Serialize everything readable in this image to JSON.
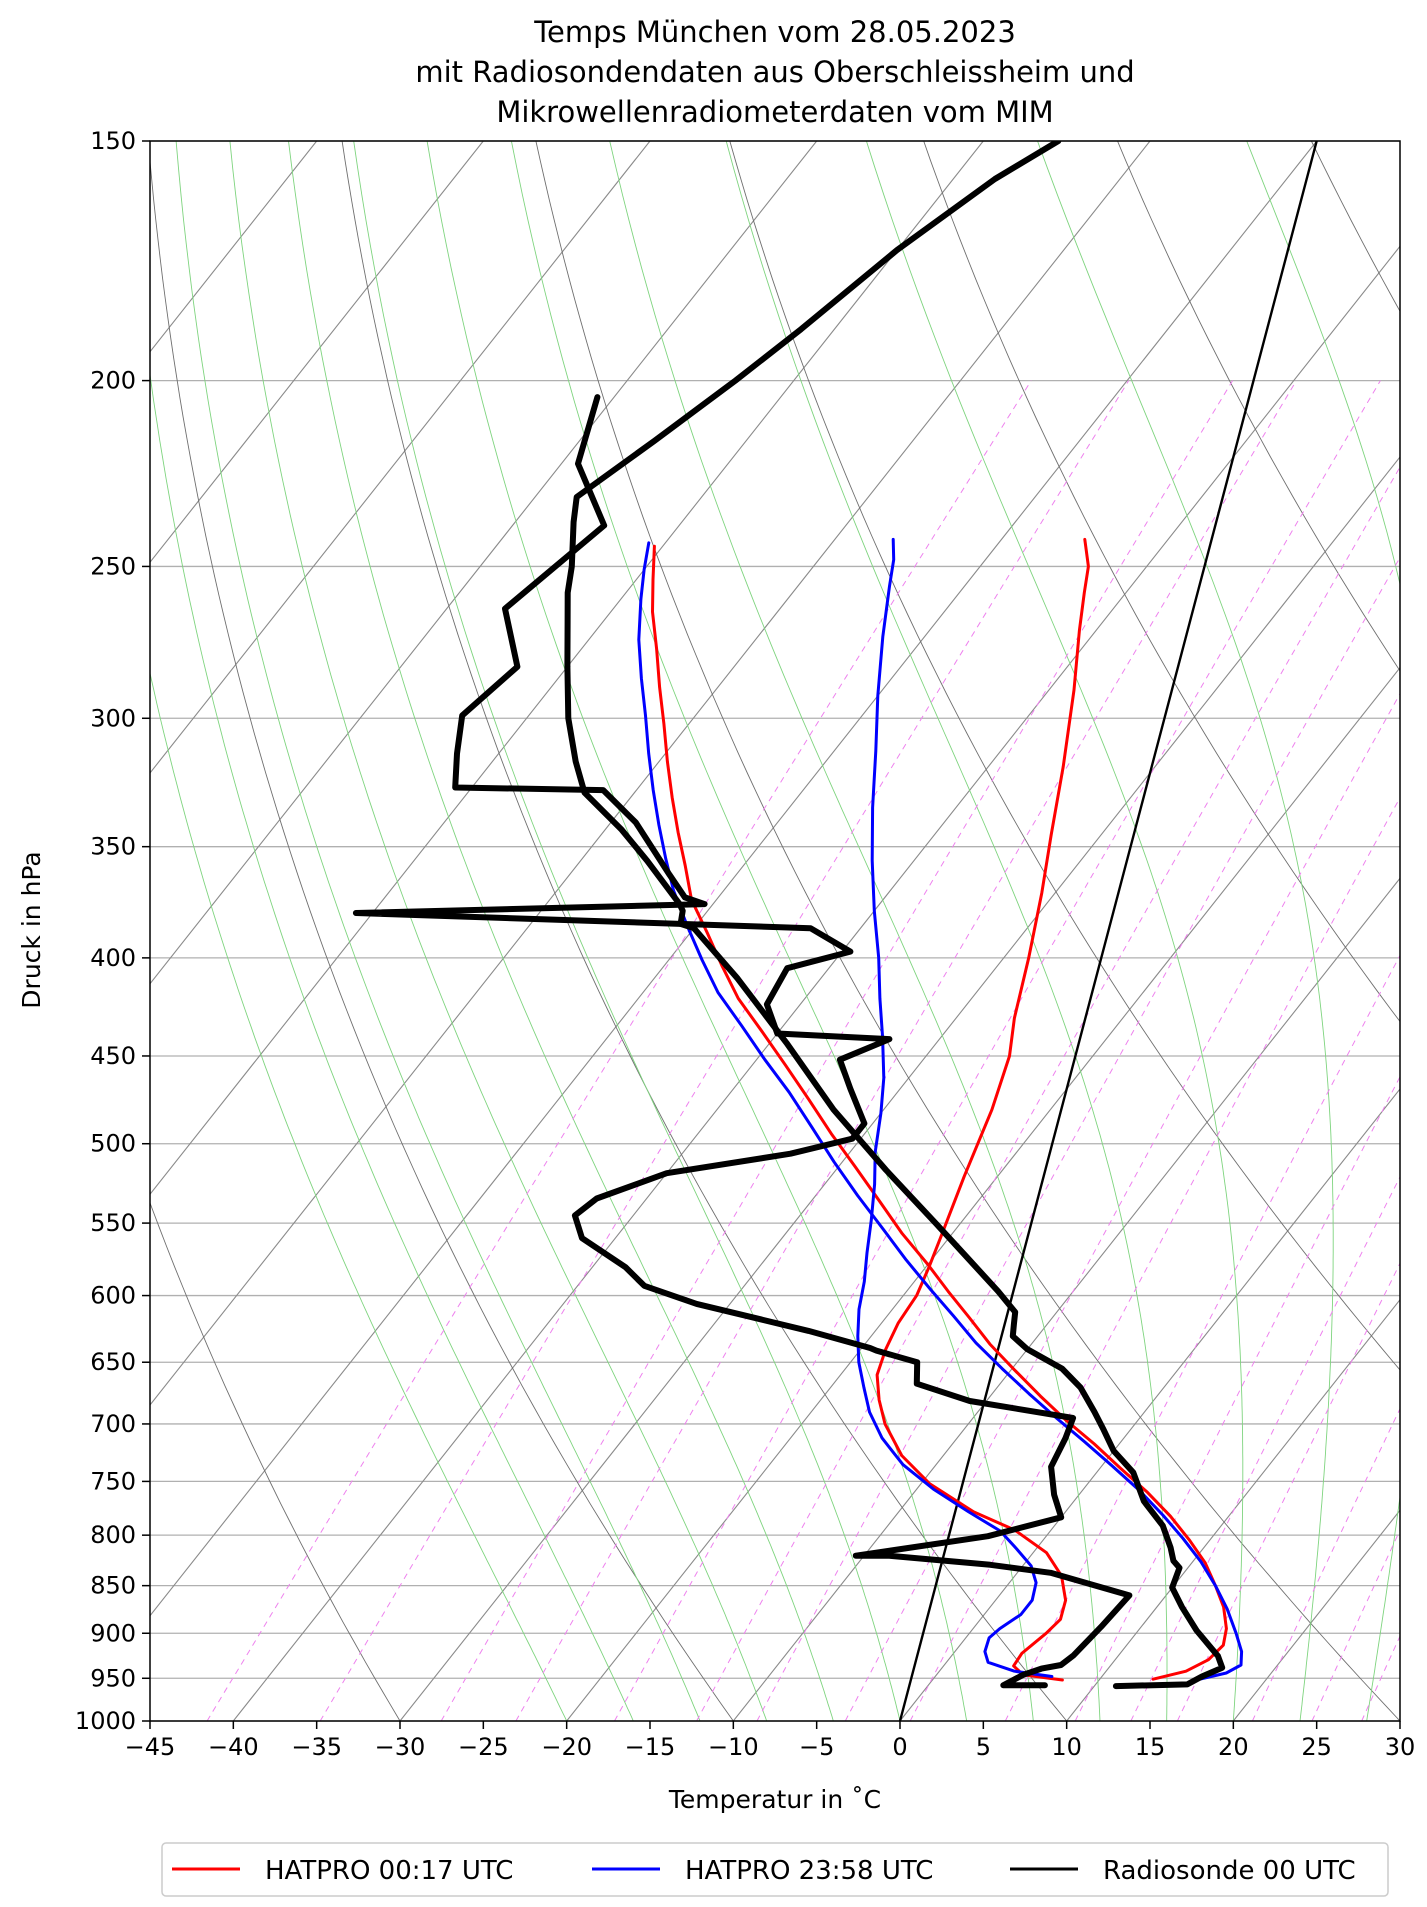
{
  "chart_data": {
    "type": "line",
    "subtype": "skew-T log-p diagram",
    "title": [
      "Temps München vom 28.05.2023",
      "mit Radiosondendaten aus Oberschleissheim und",
      "Mikrowellenradiometerdaten vom MIM"
    ],
    "xlabel": "Temperatur in $^\\circ$C",
    "xlabel_display": "Temperatur in ˚C",
    "ylabel": "Druck in hPa",
    "xlim": [
      -45,
      30
    ],
    "ylim": [
      1000,
      150
    ],
    "yscale": "log",
    "x_ticks": [
      -45,
      -40,
      -35,
      -30,
      -25,
      -20,
      -15,
      -10,
      -5,
      0,
      5,
      10,
      15,
      20,
      25,
      30
    ],
    "y_ticks": [
      150,
      200,
      250,
      300,
      350,
      400,
      450,
      500,
      550,
      600,
      650,
      700,
      750,
      800,
      850,
      900,
      950,
      1000
    ],
    "grid": true,
    "legend_position": "bottom-center",
    "colors": {
      "hatpro_0017": "#ff0000",
      "hatpro_2358": "#0000ff",
      "radiosonde": "#000000",
      "dry_adiabat": "#7f7f7f",
      "moist_adiabat": "#90ee90",
      "mixing_ratio": "#ee82ee"
    },
    "series": [
      {
        "name": "HATPRO 00:17 UTC",
        "color": "#ff0000",
        "points": [
          [
            7.8,
            952
          ],
          [
            5.2,
            946
          ],
          [
            4.2,
            936
          ],
          [
            4.1,
            922
          ],
          [
            4.6,
            900
          ],
          [
            4.8,
            885
          ],
          [
            4.2,
            865
          ],
          [
            2.8,
            840
          ],
          [
            0.8,
            817
          ],
          [
            -2.2,
            795
          ],
          [
            -5.5,
            778
          ],
          [
            -9.5,
            752
          ],
          [
            -12.5,
            727
          ],
          [
            -15.0,
            700
          ],
          [
            -16.5,
            680
          ],
          [
            -17.8,
            660
          ],
          [
            -18.5,
            640
          ],
          [
            -19.0,
            620
          ],
          [
            -19.2,
            600
          ],
          [
            -19.8,
            580
          ],
          [
            -20.5,
            560
          ],
          [
            -22.0,
            520
          ],
          [
            -23.5,
            480
          ],
          [
            -25.0,
            450
          ],
          [
            -26.5,
            430
          ],
          [
            -28.5,
            400
          ],
          [
            -30.8,
            370
          ],
          [
            -33.0,
            345
          ],
          [
            -35.5,
            318
          ],
          [
            -38.5,
            290
          ],
          [
            -41.0,
            270
          ],
          [
            -42.5,
            258
          ],
          [
            -43.5,
            250
          ],
          [
            -45.0,
            242
          ]
        ]
      },
      {
        "name": "HATPRO 00:17 UTC",
        "color": "#ff0000",
        "points": [
          [
            13.2,
            951
          ],
          [
            14.8,
            942
          ],
          [
            15.6,
            929
          ],
          [
            15.8,
            913
          ],
          [
            15.2,
            895
          ],
          [
            14.0,
            872
          ],
          [
            12.5,
            850
          ],
          [
            10.8,
            827
          ],
          [
            8.8,
            805
          ],
          [
            6.5,
            782
          ],
          [
            4.0,
            760
          ],
          [
            1.2,
            738
          ],
          [
            -1.5,
            717
          ],
          [
            -4.3,
            697
          ],
          [
            -7.0,
            677
          ],
          [
            -9.8,
            656
          ],
          [
            -12.5,
            636
          ],
          [
            -15.0,
            616
          ],
          [
            -17.5,
            597
          ],
          [
            -20.0,
            578
          ],
          [
            -23.0,
            557
          ],
          [
            -26.0,
            535
          ],
          [
            -29.0,
            514
          ],
          [
            -32.0,
            494
          ],
          [
            -35.0,
            474
          ],
          [
            -38.0,
            455
          ],
          [
            -41.0,
            437
          ],
          [
            -44.0,
            420
          ],
          [
            -46.5,
            404
          ],
          [
            -49.0,
            388
          ],
          [
            -51.5,
            373
          ],
          [
            -53.5,
            358
          ],
          [
            -55.5,
            344
          ],
          [
            -57.5,
            330
          ],
          [
            -59.5,
            316
          ],
          [
            -61.5,
            302
          ],
          [
            -63.5,
            289
          ],
          [
            -65.5,
            276
          ],
          [
            -67.5,
            264
          ],
          [
            -69.0,
            254
          ],
          [
            -70.5,
            244
          ]
        ]
      },
      {
        "name": "HATPRO 23:58 UTC",
        "color": "#0000ff",
        "points": [
          [
            7.0,
            948
          ],
          [
            4.5,
            942
          ],
          [
            2.5,
            932
          ],
          [
            1.8,
            920
          ],
          [
            1.4,
            905
          ],
          [
            1.6,
            895
          ],
          [
            2.2,
            880
          ],
          [
            2.2,
            865
          ],
          [
            1.6,
            847
          ],
          [
            0.5,
            830
          ],
          [
            -1.2,
            813
          ],
          [
            -3.0,
            796
          ],
          [
            -5.8,
            778
          ],
          [
            -9.0,
            757
          ],
          [
            -12.0,
            735
          ],
          [
            -14.5,
            712
          ],
          [
            -16.5,
            690
          ],
          [
            -18.0,
            670
          ],
          [
            -19.5,
            650
          ],
          [
            -20.8,
            630
          ],
          [
            -22.0,
            610
          ],
          [
            -23.0,
            590
          ],
          [
            -24.2,
            570
          ],
          [
            -25.5,
            548
          ],
          [
            -27.0,
            525
          ],
          [
            -28.5,
            505
          ],
          [
            -30.0,
            482
          ],
          [
            -31.5,
            462
          ],
          [
            -33.5,
            440
          ],
          [
            -35.5,
            420
          ],
          [
            -37.5,
            400
          ],
          [
            -40.0,
            378
          ],
          [
            -42.5,
            356
          ],
          [
            -45.0,
            334
          ],
          [
            -47.5,
            312
          ],
          [
            -50.0,
            292
          ],
          [
            -52.5,
            272
          ],
          [
            -54.5,
            256
          ],
          [
            -55.5,
            248
          ],
          [
            -56.5,
            242
          ]
        ]
      },
      {
        "name": "HATPRO 23:58 UTC",
        "color": "#0000ff",
        "points": [
          [
            16.0,
            951
          ],
          [
            17.3,
            944
          ],
          [
            17.8,
            935
          ],
          [
            17.2,
            920
          ],
          [
            16.0,
            900
          ],
          [
            14.3,
            874
          ],
          [
            12.5,
            850
          ],
          [
            10.5,
            826
          ],
          [
            8.3,
            803
          ],
          [
            6.0,
            781
          ],
          [
            3.4,
            758
          ],
          [
            0.6,
            736
          ],
          [
            -2.2,
            715
          ],
          [
            -5.0,
            695
          ],
          [
            -7.8,
            675
          ],
          [
            -10.6,
            655
          ],
          [
            -13.4,
            635
          ],
          [
            -16.0,
            615
          ],
          [
            -18.6,
            596
          ],
          [
            -21.5,
            575
          ],
          [
            -24.5,
            553
          ],
          [
            -27.5,
            532
          ],
          [
            -30.5,
            511
          ],
          [
            -33.5,
            490
          ],
          [
            -36.5,
            470
          ],
          [
            -39.5,
            452
          ],
          [
            -42.5,
            434
          ],
          [
            -45.5,
            417
          ],
          [
            -48.0,
            401
          ],
          [
            -50.5,
            385
          ],
          [
            -53.0,
            369
          ],
          [
            -55.0,
            355
          ],
          [
            -57.0,
            341
          ],
          [
            -59.0,
            327
          ],
          [
            -61.0,
            313
          ],
          [
            -63.0,
            299
          ],
          [
            -65.0,
            286
          ],
          [
            -67.0,
            273
          ],
          [
            -68.8,
            260
          ],
          [
            -70.0,
            251
          ],
          [
            -71.0,
            243
          ]
        ]
      },
      {
        "name": "Radiosonde 00 UTC",
        "color": "#000000",
        "points": [
          [
            7.0,
            958
          ],
          [
            4.5,
            958
          ],
          [
            5.2,
            946
          ],
          [
            6.0,
            939
          ],
          [
            7.0,
            935
          ],
          [
            7.3,
            924
          ],
          [
            7.6,
            893
          ],
          [
            7.8,
            860
          ],
          [
            2.0,
            837
          ],
          [
            -2.0,
            829
          ],
          [
            -8.5,
            820
          ],
          [
            -10.5,
            820
          ],
          [
            -3.5,
            801
          ],
          [
            0.0,
            783
          ],
          [
            -1.5,
            762
          ],
          [
            -3.0,
            737
          ],
          [
            -3.5,
            712
          ],
          [
            -4.0,
            695
          ],
          [
            -11.0,
            681
          ],
          [
            -15.0,
            667
          ],
          [
            -16.0,
            650
          ],
          [
            -19.0,
            641
          ],
          [
            -19.5,
            639
          ],
          [
            -24.0,
            626
          ],
          [
            -32.0,
            606
          ],
          [
            -36.0,
            593
          ],
          [
            -38.0,
            580
          ],
          [
            -42.0,
            560
          ],
          [
            -43.5,
            545
          ],
          [
            -43.0,
            534
          ],
          [
            -40.0,
            518
          ],
          [
            -33.5,
            506
          ],
          [
            -30.5,
            497
          ],
          [
            -30.5,
            488
          ],
          [
            -33.0,
            468
          ],
          [
            -35.0,
            452
          ],
          [
            -33.0,
            441
          ],
          [
            -40.0,
            438
          ],
          [
            -42.0,
            423
          ],
          [
            -42.5,
            405
          ],
          [
            -39.5,
            397
          ],
          [
            -43.0,
            386
          ],
          [
            -71.0,
            379
          ],
          [
            -50.5,
            375
          ],
          [
            -52.0,
            372
          ],
          [
            -54.0,
            362
          ],
          [
            -58.5,
            340
          ],
          [
            -62.0,
            327
          ],
          [
            -71.0,
            326
          ],
          [
            -72.5,
            313
          ],
          [
            -74.0,
            299
          ],
          [
            -73.0,
            282
          ],
          [
            -76.5,
            263
          ],
          [
            -74.5,
            238
          ],
          [
            -79.0,
            221
          ],
          [
            -81.0,
            204
          ]
        ]
      },
      {
        "name": "Radiosonde 00 UTC",
        "color": "#000000",
        "points": [
          [
            11.3,
            959
          ],
          [
            15.5,
            957
          ],
          [
            16.0,
            948
          ],
          [
            16.8,
            938
          ],
          [
            16.0,
            925
          ],
          [
            13.5,
            897
          ],
          [
            11.5,
            872
          ],
          [
            10.0,
            852
          ],
          [
            9.5,
            832
          ],
          [
            8.8,
            825
          ],
          [
            8.0,
            812
          ],
          [
            6.5,
            791
          ],
          [
            4.2,
            768
          ],
          [
            2.2,
            742
          ],
          [
            0.0,
            723
          ],
          [
            -1.6,
            705
          ],
          [
            -3.0,
            690
          ],
          [
            -5.0,
            670
          ],
          [
            -7.0,
            655
          ],
          [
            -10.0,
            640
          ],
          [
            -11.5,
            630
          ],
          [
            -12.0,
            621
          ],
          [
            -12.5,
            612
          ],
          [
            -14.5,
            597
          ],
          [
            -18.0,
            573
          ],
          [
            -21.5,
            550
          ],
          [
            -27.0,
            516
          ],
          [
            -33.0,
            480
          ],
          [
            -39.0,
            443
          ],
          [
            -45.0,
            410
          ],
          [
            -50.0,
            386
          ],
          [
            -51.0,
            384
          ],
          [
            -51.5,
            378
          ],
          [
            -52.0,
            375
          ],
          [
            -56.0,
            356
          ],
          [
            -59.0,
            343
          ],
          [
            -63.0,
            328
          ],
          [
            -65.0,
            316
          ],
          [
            -67.5,
            300
          ],
          [
            -70.0,
            282
          ],
          [
            -72.0,
            268
          ],
          [
            -73.5,
            258
          ],
          [
            -74.5,
            250
          ],
          [
            -76.5,
            237
          ],
          [
            -77.5,
            230
          ],
          [
            -75.5,
            215
          ],
          [
            -73.5,
            200
          ],
          [
            -72.0,
            188
          ],
          [
            -70.0,
            171
          ],
          [
            -67.5,
            157
          ],
          [
            -65.5,
            150
          ]
        ]
      }
    ],
    "additional_lines": [
      {
        "description": "thin black diagonal line",
        "color": "#000000",
        "points": [
          [
            0,
            1000
          ],
          [
            -50,
            150
          ]
        ]
      }
    ],
    "legend": [
      {
        "label": "HATPRO 00:17 UTC",
        "color": "#ff0000"
      },
      {
        "label": "HATPRO 23:58 UTC",
        "color": "#0000ff"
      },
      {
        "label": "Radiosonde 00 UTC",
        "color": "#000000"
      }
    ]
  }
}
